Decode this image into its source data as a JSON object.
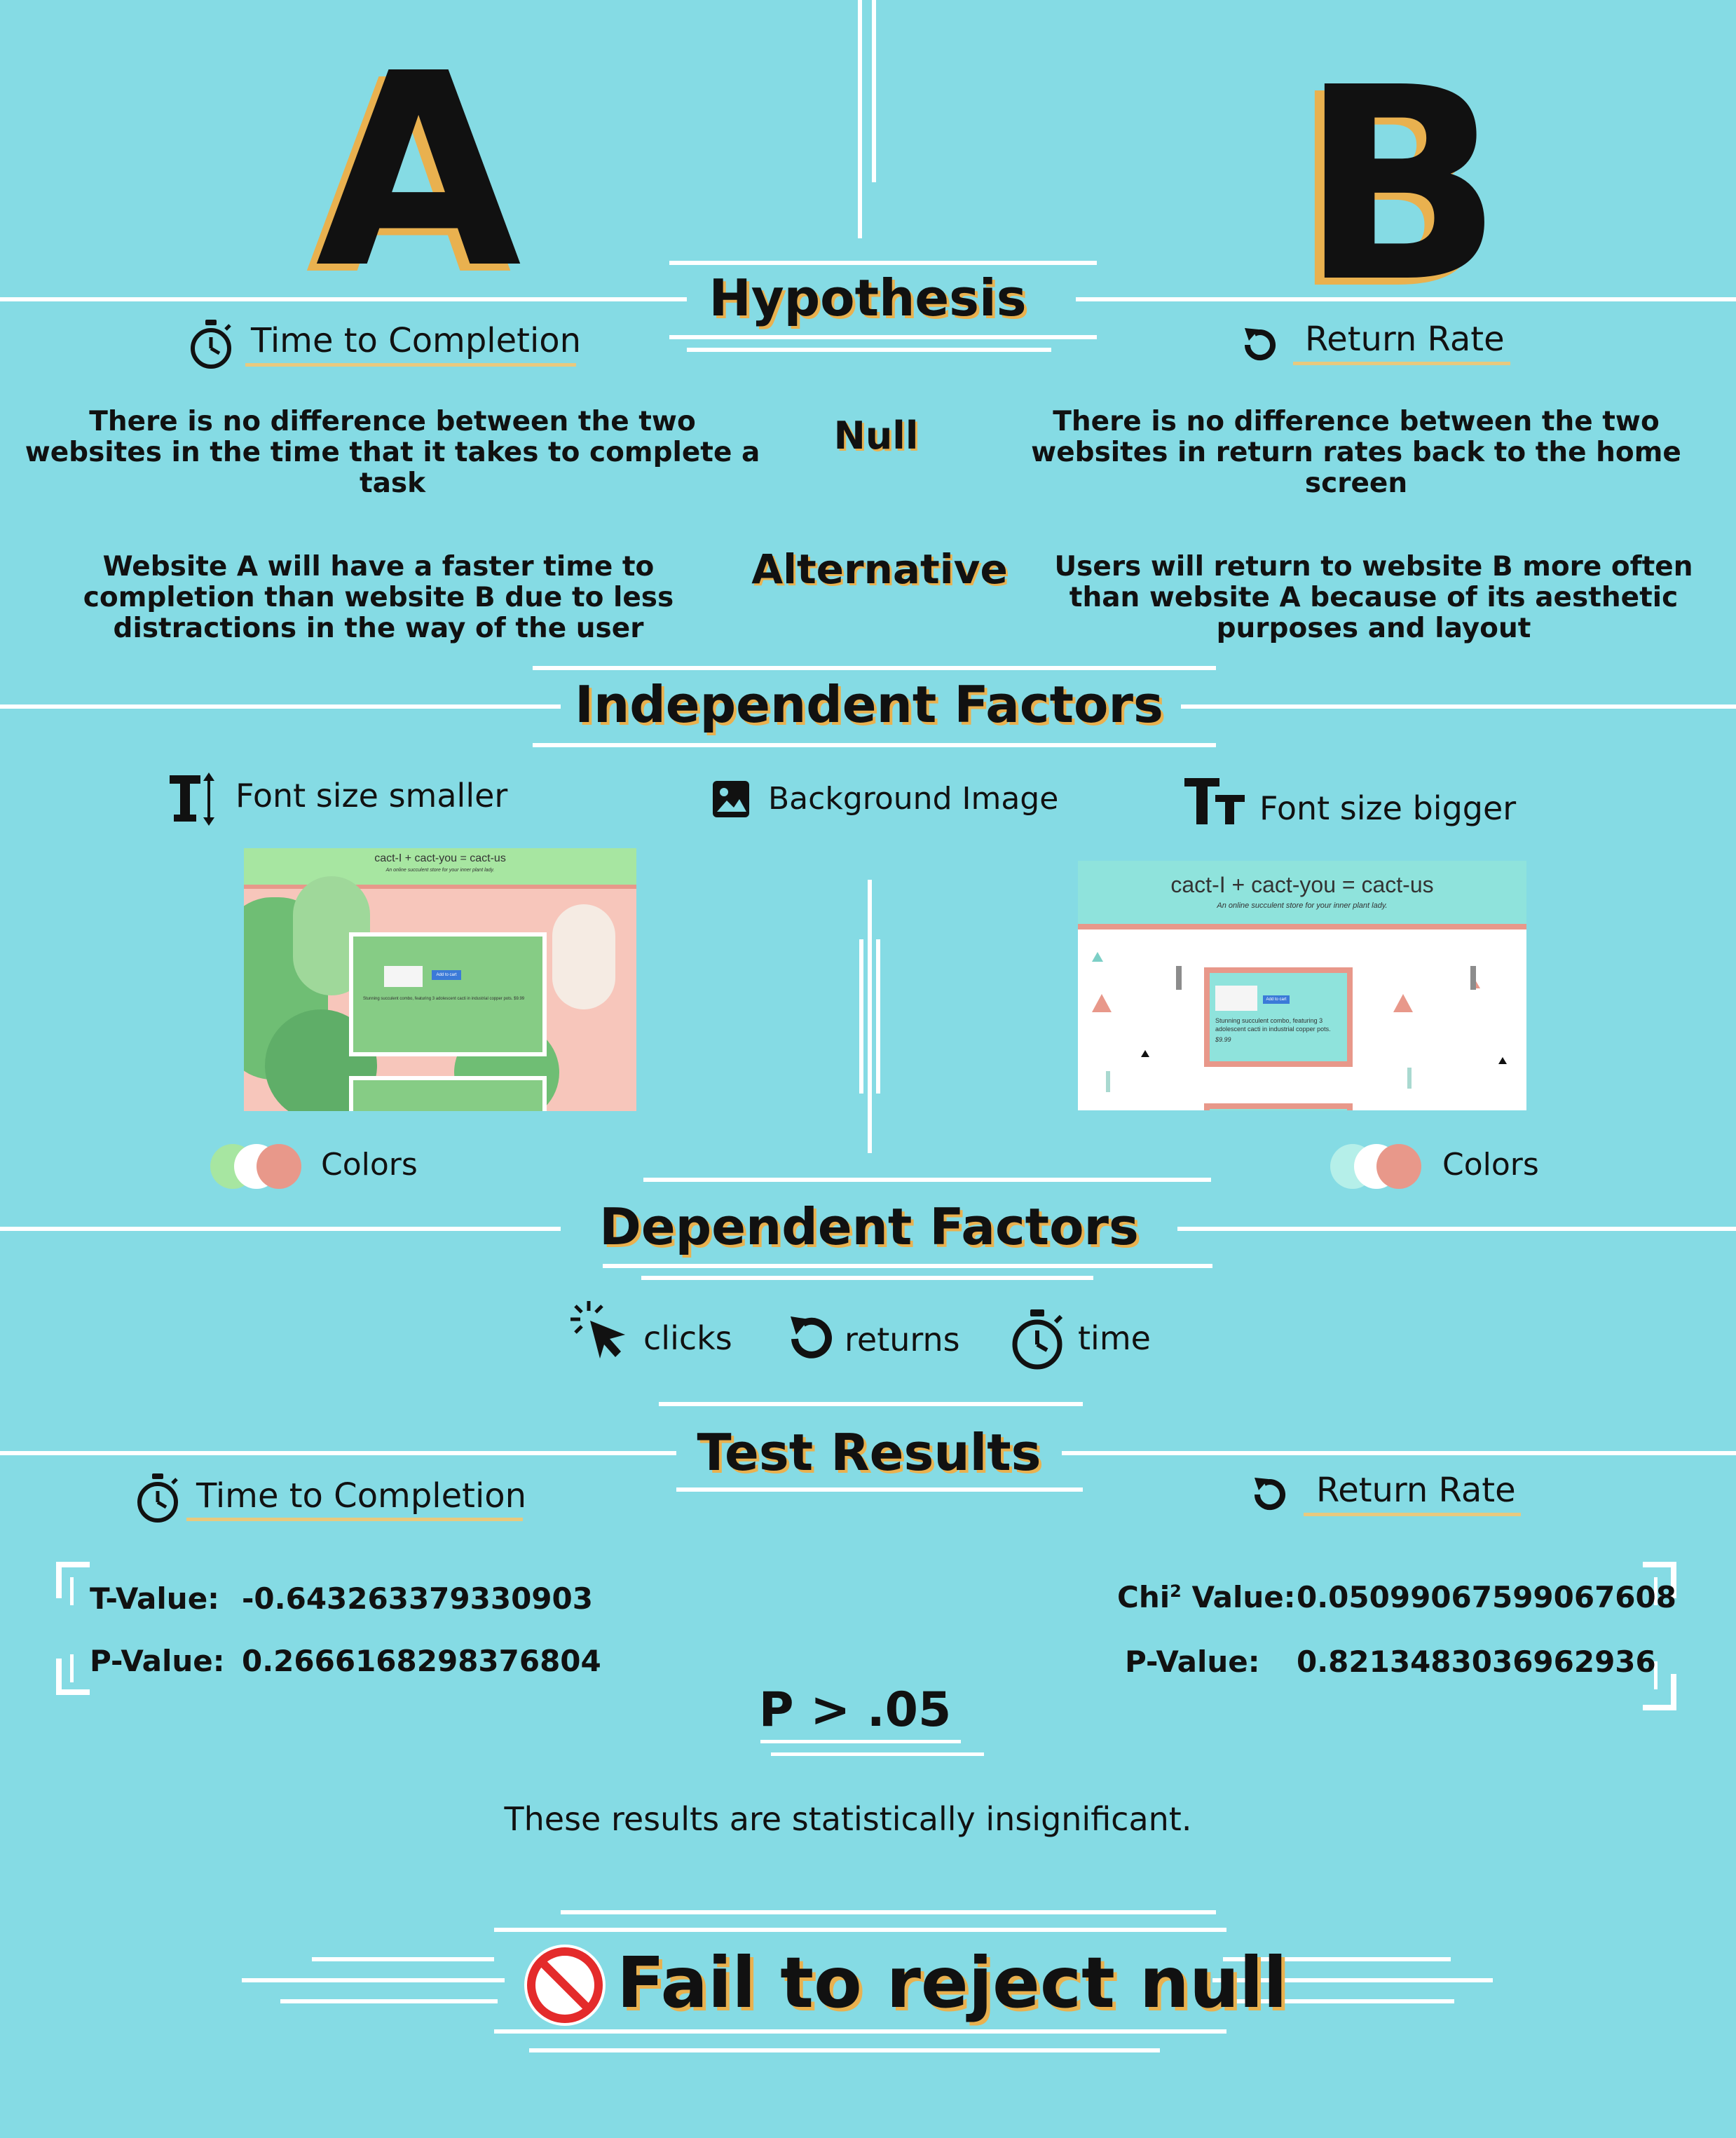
{
  "variants": {
    "a": "A",
    "b": "B"
  },
  "hypothesis": {
    "title": "Hypothesis",
    "left_metric": "Time to Completion",
    "right_metric": "Return Rate",
    "null_label": "Null",
    "alternative_label": "Alternative",
    "null_left": "There is no difference between the two websites in the time that it takes to complete a task",
    "null_right": "There is no difference between the two websites in return rates back to the home screen",
    "alt_left": "Website A will have a faster time to completion than website B due to less distractions in the way of the user",
    "alt_right": "Users will return to website B more often than website A because of its aesthetic purposes and layout"
  },
  "independent": {
    "title": "Independent Factors",
    "left_factor": "Font size smaller",
    "middle_factor": "Background Image",
    "right_factor": "Font size bigger",
    "colors_label_left": "Colors",
    "colors_label_right": "Colors",
    "site_a": {
      "header": "cact-I + cact-you = cact-us",
      "tagline": "An online succulent store for your inner plant lady.",
      "button": "Add to cart",
      "desc": "Stunning succulent combo, featuring 3 adolescent cacti in industrial copper pots. $9.99"
    },
    "site_b": {
      "header": "cact-I + cact-you = cact-us",
      "tagline": "An online succulent store for your inner plant lady.",
      "button": "Add to cart",
      "desc": "Stunning succulent combo, featuring 3 adolescent cacti in industrial copper pots.",
      "price": "$9.99"
    }
  },
  "dependent": {
    "title": "Dependent Factors",
    "clicks": "clicks",
    "returns": "returns",
    "time": "time"
  },
  "results": {
    "title": "Test Results",
    "left_metric": "Time to Completion",
    "right_metric": "Return Rate",
    "t_label": "T-Value:",
    "t_value": "-0.643263379330903",
    "p_label_left": "P-Value:",
    "p_value_left": "0.2666168298376804",
    "chi_label_prefix": "Chi",
    "chi_label_sup": "2",
    "chi_label_suffix": " Value:",
    "chi_value": "0.05099067599067608",
    "p_label_right": "P-Value:",
    "p_value_right": "0.8213483036962936",
    "p_threshold": "P > .05",
    "summary": "These results are statistically insignificant.",
    "conclusion": "Fail to reject null"
  },
  "colors": {
    "background": "#85dbe4",
    "accent_gold": "#e9b14f",
    "site_a_green": "#a7e6a1",
    "site_a_pink": "#f7c6bb",
    "site_b_teal": "#8fe3dc",
    "salmon": "#e8988a",
    "prohibit_red": "#e42b2b"
  }
}
